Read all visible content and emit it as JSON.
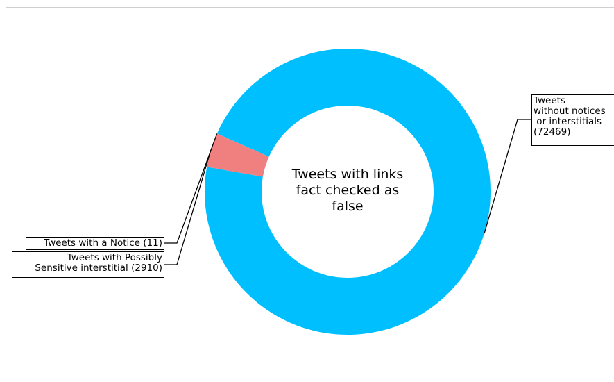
{
  "chart_data": {
    "type": "pie",
    "donut": true,
    "center_label": "Tweets with links\nfact checked as\nfalse",
    "slices": [
      {
        "label": "Tweets\nwithout notices\n or interstitials\n(72469)",
        "value": 72469,
        "color": "#00bfff"
      },
      {
        "label": "Tweets with a Notice (11)",
        "value": 11,
        "color": "#f08080"
      },
      {
        "label": "Tweets with Possibly\nSensitive interstitial (2910)",
        "value": 2910,
        "color": "#f08080"
      }
    ]
  }
}
